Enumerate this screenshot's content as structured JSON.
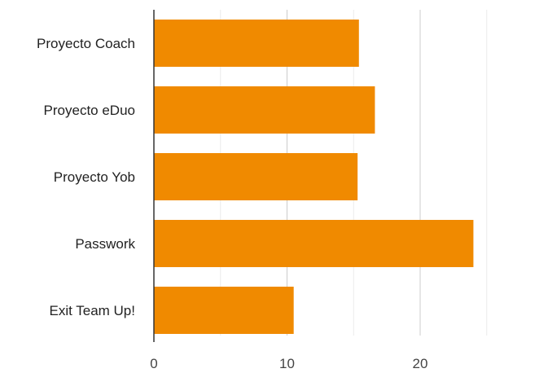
{
  "chart_data": {
    "type": "bar",
    "orientation": "horizontal",
    "categories": [
      "Proyecto Coach",
      "Proyecto eDuo",
      "Proyecto Yob",
      "Passwork",
      "Exit Team Up!"
    ],
    "values": [
      15.4,
      16.6,
      15.3,
      24.0,
      10.5
    ],
    "xlim": [
      0,
      25
    ],
    "xticks": [
      0,
      10,
      20
    ],
    "minor_grid_step": 5,
    "grid": true,
    "legend": "none",
    "colors": {
      "bar": "#f08a00",
      "major_grid": "#cccccc",
      "minor_grid": "#ebebeb",
      "axis": "#333333",
      "label_text": "#222222",
      "tick_text": "#444444"
    }
  }
}
